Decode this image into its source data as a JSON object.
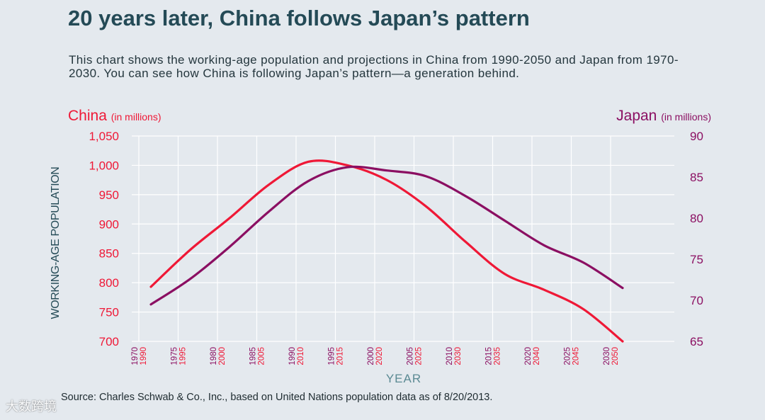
{
  "header": {
    "title": "20 years later, China follows Japan’s pattern",
    "subtitle": "This chart shows the working-age population and projections in China from 1990-2050 and Japan from 1970-2030. You can see how China is following Japan’s pattern—a generation behind."
  },
  "left_axis_title": {
    "name": "China",
    "unit": "(in millions)"
  },
  "right_axis_title": {
    "name": "Japan",
    "unit": "(in millions)"
  },
  "footer": {
    "source": "Source: Charles Schwab & Co., Inc., based on United Nations population data as of 8/20/2013.",
    "watermark": "大数跨境"
  },
  "colors": {
    "china": "#ef1836",
    "japan": "#8b0f62",
    "heading": "#244a56",
    "grid": "#ffffff"
  },
  "chart_data": {
    "type": "line",
    "xlabel": "YEAR",
    "ylabel": "WORKING-AGE POPULATION",
    "grid": true,
    "x_ticks_japan": [
      "1970",
      "1975",
      "1980",
      "1985",
      "1990",
      "1995",
      "2000",
      "2005",
      "2010",
      "2015",
      "2020",
      "2025",
      "2030"
    ],
    "x_ticks_china": [
      "1990",
      "1995",
      "2000",
      "2005",
      "2010",
      "2015",
      "2020",
      "2025",
      "2030",
      "2035",
      "2040",
      "2045",
      "2050"
    ],
    "y_left": {
      "label": "China",
      "unit": "in millions",
      "ticks": [
        "1,050",
        "1,000",
        "950",
        "900",
        "850",
        "800",
        "750",
        "700"
      ],
      "range": [
        700,
        1050
      ]
    },
    "y_right": {
      "label": "Japan",
      "unit": "in millions",
      "ticks": [
        "90",
        "85",
        "80",
        "75",
        "70",
        "65"
      ],
      "range": [
        65,
        90
      ]
    },
    "series": [
      {
        "name": "China",
        "axis": "left",
        "x": [
          1990,
          1995,
          2000,
          2005,
          2010,
          2015,
          2020,
          2025,
          2030,
          2035,
          2040,
          2045,
          2050
        ],
        "values": [
          793,
          856,
          910,
          967,
          1006,
          1000,
          975,
          930,
          870,
          815,
          788,
          755,
          700
        ]
      },
      {
        "name": "Japan",
        "axis": "right",
        "x": [
          1970,
          1975,
          1980,
          1985,
          1990,
          1995,
          2000,
          2005,
          2010,
          2015,
          2020,
          2025,
          2030
        ],
        "values": [
          69.5,
          72.6,
          76.5,
          80.8,
          84.5,
          86.2,
          85.8,
          85.1,
          82.7,
          79.7,
          76.7,
          74.6,
          71.5
        ]
      }
    ]
  }
}
